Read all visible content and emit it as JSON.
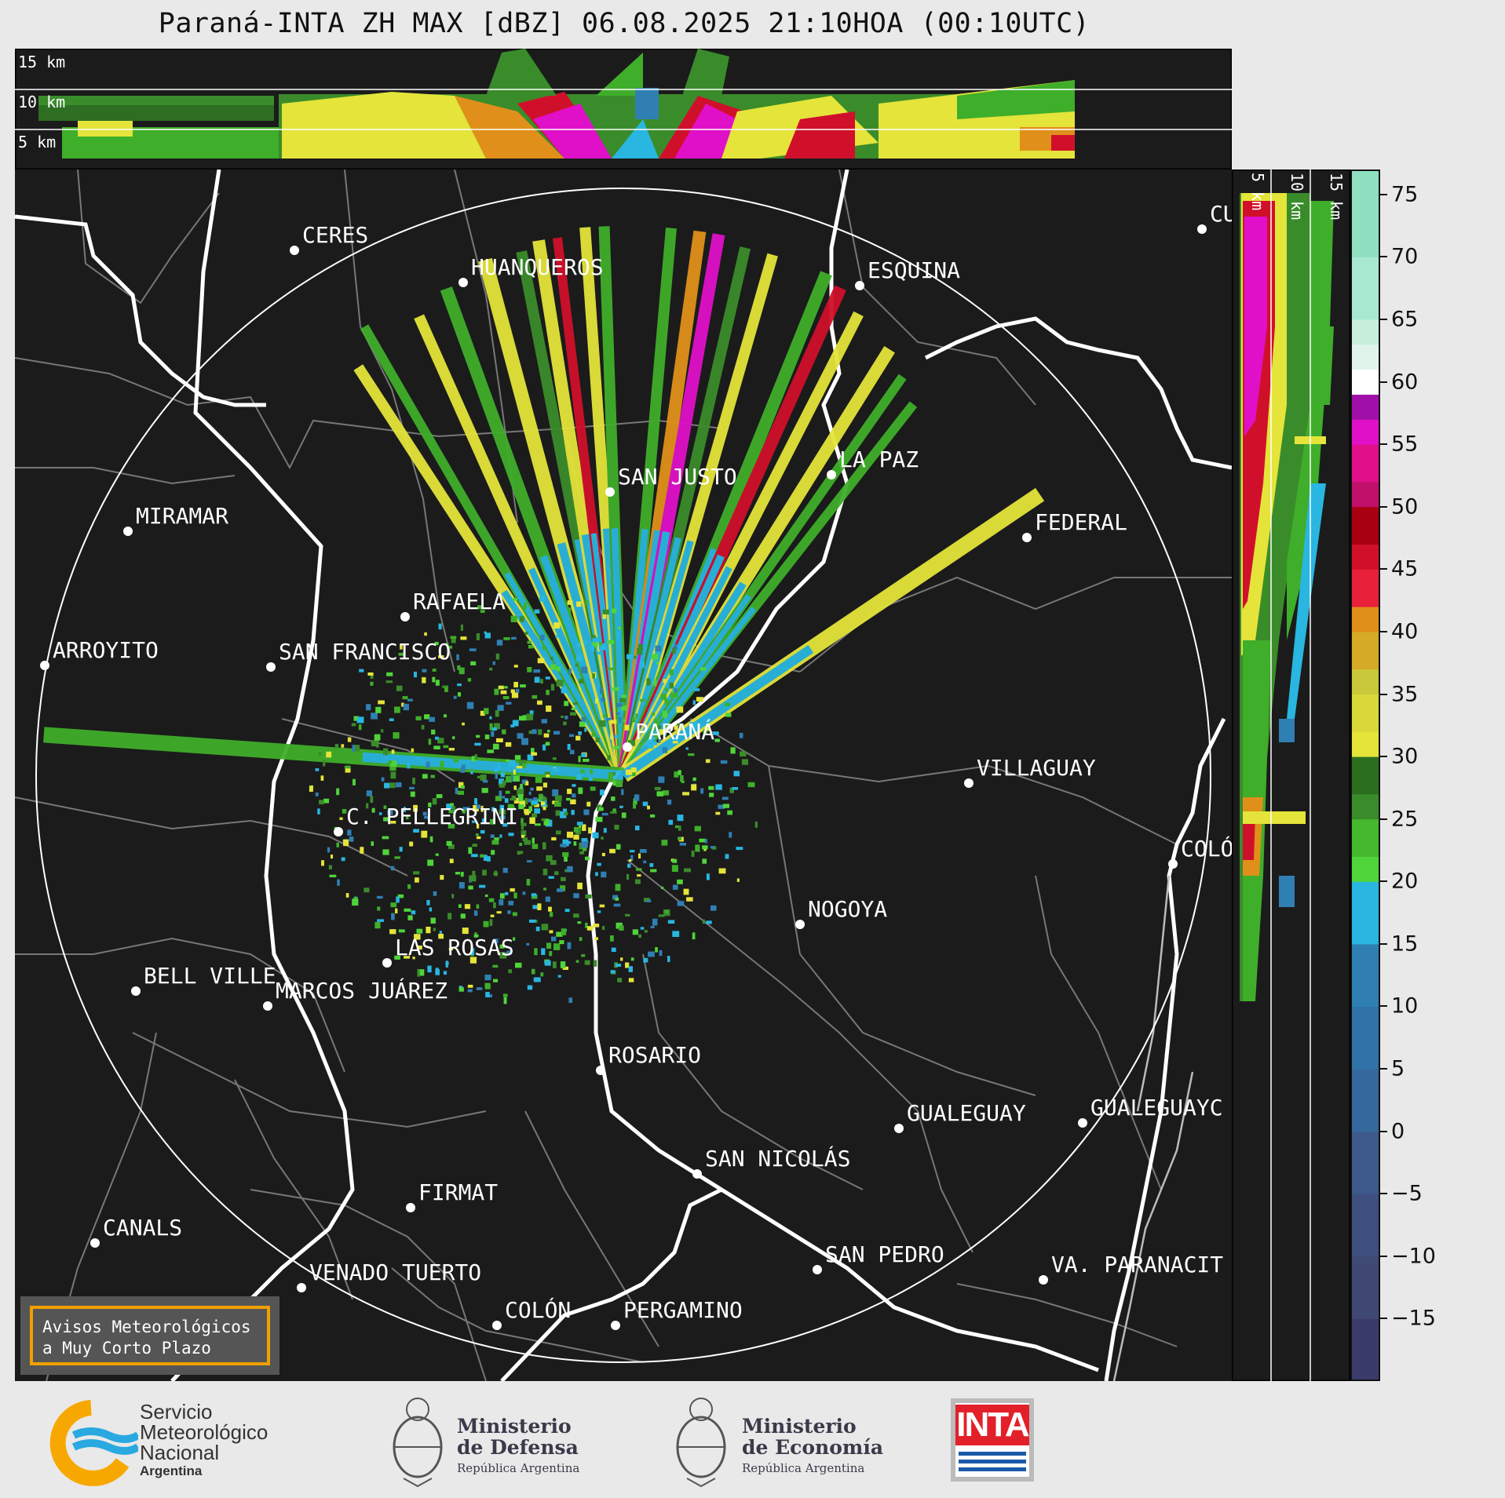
{
  "title": "Paraná-INTA ZH MAX [dBZ] 06.08.2025 21:10HOA (00:10UTC)",
  "top_panel": {
    "height_labels": [
      "15 km",
      "10 km",
      "5 km"
    ]
  },
  "side_panel": {
    "height_labels": [
      "5 km",
      "10 km",
      "15 km"
    ]
  },
  "colorbar": {
    "unit": "dBZ",
    "ticks": [
      "75",
      "70",
      "65",
      "60",
      "55",
      "50",
      "45",
      "40",
      "35",
      "30",
      "25",
      "20",
      "15",
      "10",
      "5",
      "0",
      "−5",
      "−10",
      "−15"
    ],
    "tick_values": [
      75,
      70,
      65,
      60,
      55,
      50,
      45,
      40,
      35,
      30,
      25,
      20,
      15,
      10,
      5,
      0,
      -5,
      -10,
      -15
    ],
    "range": [
      -20,
      77
    ],
    "colors": {
      "low_-20": "#3b3b6b",
      "neg": "#3e5a8c",
      "0_15": "#2f7fb3",
      "15_20": "#29b6e0",
      "20_30": "#3a8c2a",
      "30_40": "#e4e43a",
      "40_45": "#e0901a",
      "45_50": "#d0102a",
      "50_60": "#e010c8",
      "60_65": "#ffffff",
      "65_77": "#8fe0c0"
    }
  },
  "map": {
    "background": "#1b1b1b",
    "radar_site": "PARANÁ",
    "cities": [
      {
        "name": "CERES"
      },
      {
        "name": "HUANQUEROS"
      },
      {
        "name": "ESQUINA"
      },
      {
        "name": "CU"
      },
      {
        "name": "SAN JUSTO"
      },
      {
        "name": "LA PAZ"
      },
      {
        "name": "MIRAMAR"
      },
      {
        "name": "FEDERAL"
      },
      {
        "name": "RAFAELA"
      },
      {
        "name": "ARROYITO"
      },
      {
        "name": "SAN FRANCISCO"
      },
      {
        "name": "PARANÁ"
      },
      {
        "name": "VILLAGUAY"
      },
      {
        "name": "C. PELLEGRINI"
      },
      {
        "name": "COLÓ"
      },
      {
        "name": "NOGOYA"
      },
      {
        "name": "LAS ROSAS"
      },
      {
        "name": "BELL VILLE"
      },
      {
        "name": "MARCOS JUÁREZ"
      },
      {
        "name": "ROSARIO"
      },
      {
        "name": "GUALEGUAYC"
      },
      {
        "name": "GUALEGUAY"
      },
      {
        "name": "SAN NICOLÁS"
      },
      {
        "name": "FIRMAT"
      },
      {
        "name": "CANALS"
      },
      {
        "name": "SAN PEDRO"
      },
      {
        "name": "VENADO TUERTO"
      },
      {
        "name": "VA. PARANACIT"
      },
      {
        "name": "COLÓN"
      },
      {
        "name": "PERGAMINO"
      }
    ]
  },
  "notice": {
    "line1": "Avisos Meteorológicos",
    "line2": "a Muy Corto Plazo"
  },
  "logos": {
    "smn": {
      "line1": "Servicio",
      "line2": "Meteorológico",
      "line3": "Nacional",
      "line4": "Argentina"
    },
    "defensa": {
      "line1": "Ministerio",
      "line2": "de Defensa",
      "line3": "República Argentina"
    },
    "economia": {
      "line1": "Ministerio",
      "line2": "de Economía",
      "line3": "República Argentina"
    },
    "inta": {
      "text": "INTA"
    }
  }
}
